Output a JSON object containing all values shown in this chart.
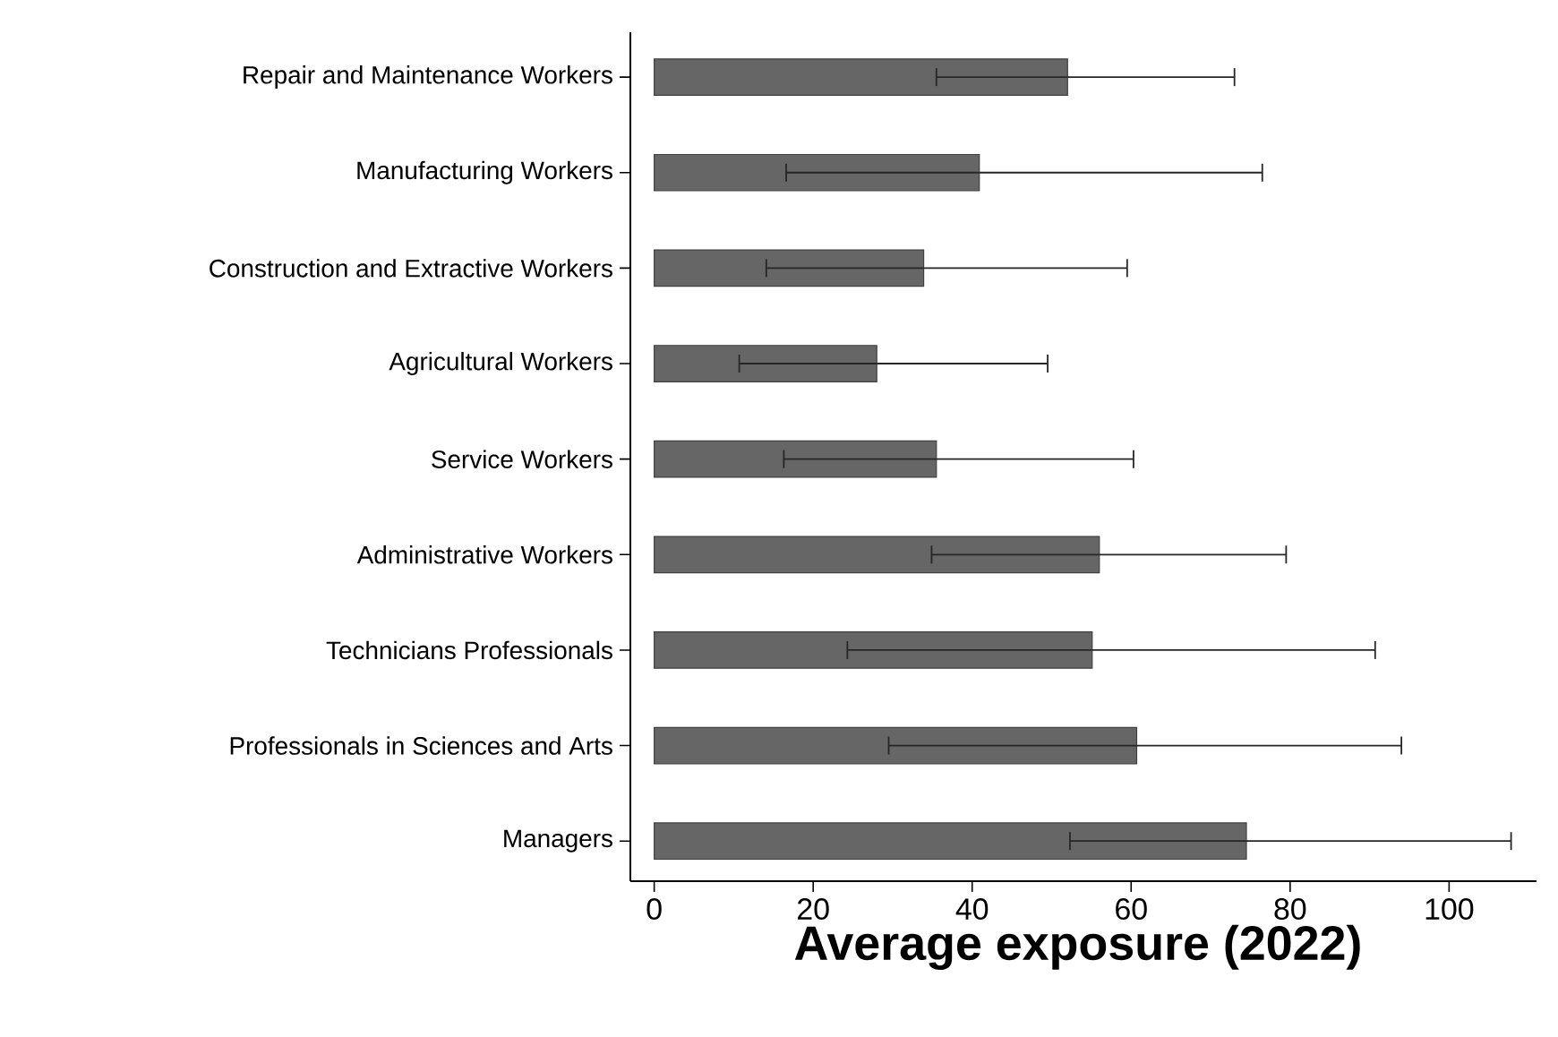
{
  "chart_data": {
    "type": "bar",
    "orientation": "horizontal",
    "xlabel": "Average exposure (2022)",
    "categories": [
      "Repair and Maintenance Workers",
      "Manufacturing Workers",
      "Construction and Extractive Workers",
      "Agricultural Workers",
      "Service Workers",
      "Administrative Workers",
      "Technicians Professionals",
      "Professionals in Sciences and Arts",
      "Managers"
    ],
    "values": [
      52,
      40.9,
      33.9,
      28,
      35.5,
      56,
      55.1,
      60.7,
      74.5
    ],
    "errors": [
      [
        35.5,
        73
      ],
      [
        16.6,
        76.5
      ],
      [
        14.1,
        59.5
      ],
      [
        10.7,
        49.5
      ],
      [
        16.3,
        60.3
      ],
      [
        34.9,
        79.5
      ],
      [
        24.3,
        90.7
      ],
      [
        29.5,
        94
      ],
      [
        52.3,
        107.8
      ]
    ],
    "color": "#666666",
    "xlim": [
      -3,
      111
    ],
    "xticks": [
      0,
      20,
      40,
      60,
      80,
      100
    ]
  }
}
